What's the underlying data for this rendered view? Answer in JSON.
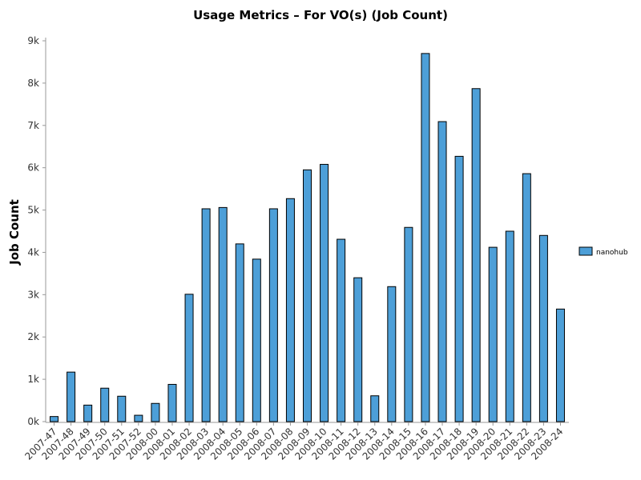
{
  "chart_data": {
    "type": "bar",
    "title": "Usage Metrics – For VO(s) (Job Count)",
    "xlabel": "",
    "ylabel": "Job Count",
    "ylim": [
      0,
      9000
    ],
    "yticks": [
      0,
      1000,
      2000,
      3000,
      4000,
      5000,
      6000,
      7000,
      8000,
      9000
    ],
    "ytick_labels": [
      "0k",
      "1k",
      "2k",
      "3k",
      "4k",
      "5k",
      "6k",
      "7k",
      "8k",
      "9k"
    ],
    "categories": [
      "2007-47",
      "2007-48",
      "2007-49",
      "2007-50",
      "2007-51",
      "2007-52",
      "2008-00",
      "2008-01",
      "2008-02",
      "2008-03",
      "2008-04",
      "2008-05",
      "2008-06",
      "2008-07",
      "2008-08",
      "2008-09",
      "2008-10",
      "2008-11",
      "2008-12",
      "2008-13",
      "2008-14",
      "2008-15",
      "2008-16",
      "2008-17",
      "2008-18",
      "2008-19",
      "2008-20",
      "2008-21",
      "2008-22",
      "2008-23",
      "2008-24"
    ],
    "series": [
      {
        "name": "nanohub",
        "color": "#4d9fd8",
        "values": [
          120,
          1170,
          390,
          790,
          600,
          150,
          430,
          880,
          3010,
          5030,
          5060,
          4200,
          3840,
          5030,
          5270,
          5950,
          6080,
          4310,
          3400,
          610,
          3190,
          4590,
          8700,
          7090,
          6270,
          7870,
          4120,
          4500,
          5860,
          4400,
          2660
        ]
      }
    ],
    "legend": {
      "position": "right"
    },
    "grid": false
  }
}
